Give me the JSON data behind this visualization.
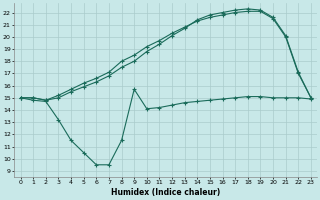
{
  "xlabel": "Humidex (Indice chaleur)",
  "bg_color": "#c8e8e8",
  "grid_color": "#aacccc",
  "line_color": "#1a6b5a",
  "xlim": [
    -0.5,
    23.5
  ],
  "ylim": [
    8.5,
    22.8
  ],
  "xticks": [
    0,
    1,
    2,
    3,
    4,
    5,
    6,
    7,
    8,
    9,
    10,
    11,
    12,
    13,
    14,
    15,
    16,
    17,
    18,
    19,
    20,
    21,
    22,
    23
  ],
  "yticks": [
    9,
    10,
    11,
    12,
    13,
    14,
    15,
    16,
    17,
    18,
    19,
    20,
    21,
    22
  ],
  "s1_x": [
    0,
    1,
    2,
    3,
    4,
    5,
    6,
    7,
    8,
    9,
    10,
    11,
    12,
    13,
    14,
    15,
    16,
    17,
    18,
    19,
    20,
    21,
    22,
    23
  ],
  "s1_y": [
    15.0,
    14.8,
    14.7,
    13.2,
    11.5,
    10.5,
    9.5,
    9.5,
    11.5,
    15.7,
    14.1,
    14.2,
    14.4,
    14.6,
    14.7,
    14.8,
    14.9,
    15.0,
    15.1,
    15.1,
    15.0,
    15.0,
    15.0,
    14.9
  ],
  "s2_x": [
    0,
    1,
    2,
    3,
    4,
    5,
    6,
    7,
    8,
    9,
    10,
    11,
    12,
    13,
    14,
    15,
    16,
    17,
    18,
    19,
    20,
    21,
    22,
    23
  ],
  "s2_y": [
    15.0,
    15.0,
    14.8,
    15.2,
    15.7,
    16.2,
    16.6,
    17.1,
    18.0,
    18.5,
    19.2,
    19.7,
    20.3,
    20.8,
    21.3,
    21.6,
    21.8,
    22.0,
    22.1,
    22.1,
    21.5,
    20.0,
    17.0,
    15.0
  ],
  "s3_x": [
    0,
    1,
    2,
    3,
    4,
    5,
    6,
    7,
    8,
    9,
    10,
    11,
    12,
    13,
    14,
    15,
    16,
    17,
    18,
    19,
    20,
    21,
    22,
    23
  ],
  "s3_y": [
    15.0,
    15.0,
    14.8,
    15.0,
    15.5,
    15.9,
    16.3,
    16.8,
    17.5,
    18.0,
    18.8,
    19.4,
    20.1,
    20.7,
    21.4,
    21.8,
    22.0,
    22.2,
    22.3,
    22.2,
    21.6,
    20.1,
    17.1,
    15.0
  ]
}
